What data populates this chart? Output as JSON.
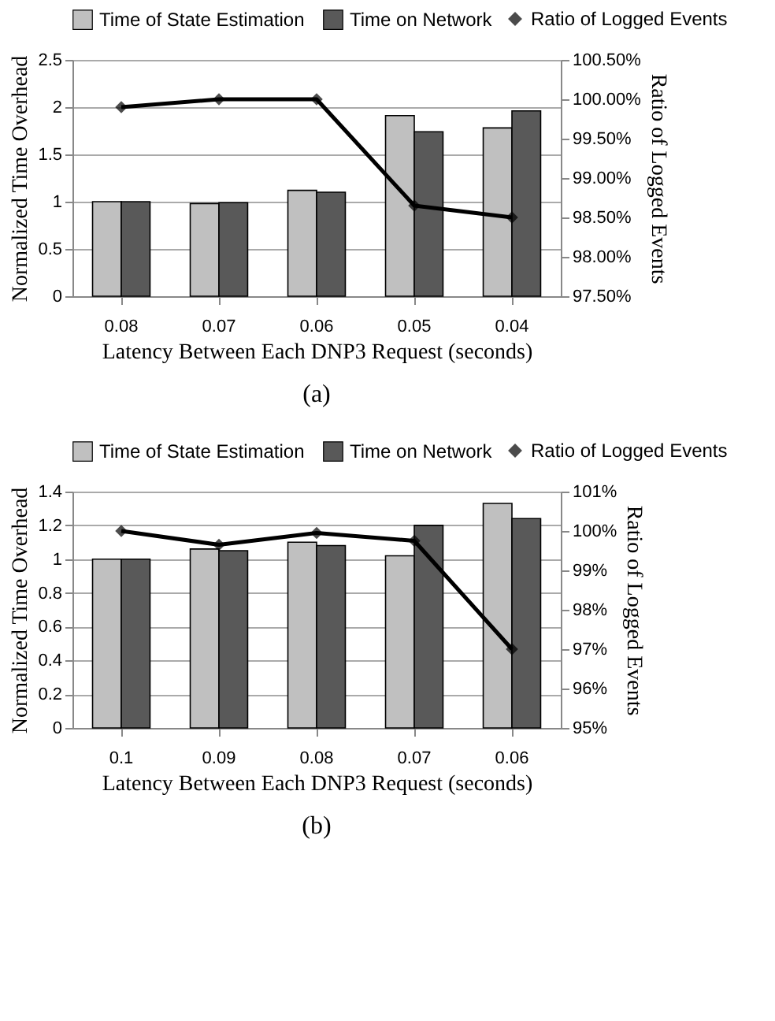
{
  "chart_data": [
    {
      "type": "bar",
      "categories": [
        "0.08",
        "0.07",
        "0.06",
        "0.05",
        "0.04"
      ],
      "xlabel": "Latency  Between Each DNP3 Request  (seconds)",
      "ylabel": "Normalized  Time  Overhead",
      "y2label": "Ratio  of Logged  Events",
      "ylim": [
        0,
        2.5
      ],
      "yticks": [
        0,
        0.5,
        1,
        1.5,
        2,
        2.5
      ],
      "y2lim": [
        97.5,
        100.5
      ],
      "y2ticks": [
        {
          "value": 97.5,
          "label": "97.50%"
        },
        {
          "value": 98,
          "label": "98.00%"
        },
        {
          "value": 98.5,
          "label": "98.50%"
        },
        {
          "value": 99,
          "label": "99.00%"
        },
        {
          "value": 99.5,
          "label": "99.50%"
        },
        {
          "value": 100,
          "label": "100.00%"
        },
        {
          "value": 100.5,
          "label": "100.50%"
        }
      ],
      "grid": "y",
      "legend": "top",
      "annotations": [
        "(a)"
      ],
      "series": [
        {
          "name": "Time of State Estimation",
          "color": "#c0c0c0",
          "values": [
            1.0,
            0.98,
            1.12,
            1.91,
            1.78
          ]
        },
        {
          "name": "Time on Network",
          "color": "#595959",
          "values": [
            1.0,
            0.99,
            1.1,
            1.74,
            1.96
          ]
        },
        {
          "name": "Ratio of Logged Events",
          "type": "line",
          "axis": "y2",
          "color": "#000000",
          "marker": "diamond",
          "values": [
            99.9,
            100.0,
            100.0,
            98.65,
            98.5
          ]
        }
      ]
    },
    {
      "type": "bar",
      "categories": [
        "0.1",
        "0.09",
        "0.08",
        "0.07",
        "0.06"
      ],
      "xlabel": "Latency  Between Each DNP3 Request  (seconds)",
      "ylabel": "Normalized  Time  Overhead",
      "y2label": "Ratio  of Logged  Events",
      "ylim": [
        0,
        1.4
      ],
      "yticks": [
        0,
        0.2,
        0.4,
        0.6,
        0.8,
        1,
        1.2,
        1.4
      ],
      "y2lim": [
        95,
        101
      ],
      "y2ticks": [
        {
          "value": 95,
          "label": "95%"
        },
        {
          "value": 96,
          "label": "96%"
        },
        {
          "value": 97,
          "label": "97%"
        },
        {
          "value": 98,
          "label": "98%"
        },
        {
          "value": 99,
          "label": "99%"
        },
        {
          "value": 100,
          "label": "100%"
        },
        {
          "value": 101,
          "label": "101%"
        }
      ],
      "grid": "y",
      "legend": "top",
      "annotations": [
        "(b)"
      ],
      "series": [
        {
          "name": "Time of State Estimation",
          "color": "#c0c0c0",
          "values": [
            1.0,
            1.06,
            1.1,
            1.02,
            1.33
          ]
        },
        {
          "name": "Time on Network",
          "color": "#595959",
          "values": [
            1.0,
            1.05,
            1.08,
            1.2,
            1.24
          ]
        },
        {
          "name": "Ratio of Logged Events",
          "type": "line",
          "axis": "y2",
          "color": "#000000",
          "marker": "diamond",
          "values": [
            100.0,
            99.65,
            99.95,
            99.75,
            97.0
          ]
        }
      ]
    }
  ]
}
